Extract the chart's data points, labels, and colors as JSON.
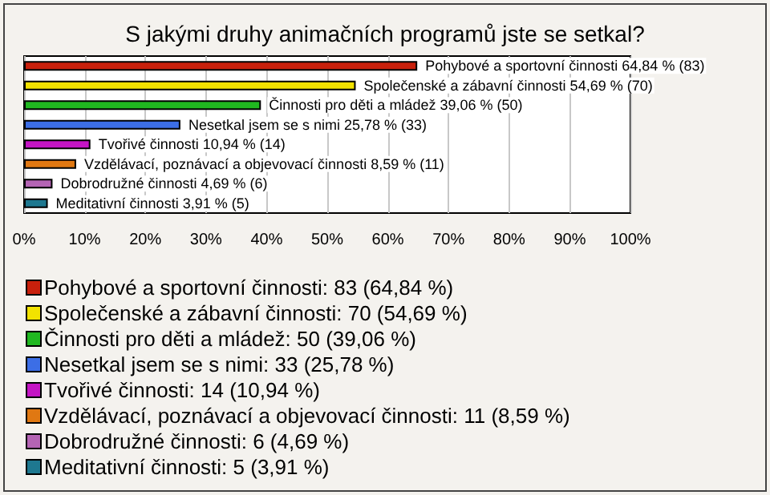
{
  "chart_data": {
    "type": "bar",
    "orientation": "horizontal",
    "stacked": true,
    "title": "S jakými druhy animačních programů jste se setkal?",
    "categories": [
      null,
      null,
      null,
      null,
      null,
      null,
      null,
      null
    ],
    "series": [
      {
        "name": "Pohybové a sportovní činnosti: 83 (64,84 %)",
        "color": "#c8200c",
        "values": [
          64.84,
          null,
          null,
          null,
          null,
          null,
          null,
          null
        ],
        "value_labels": [
          "Pohybové a sportovní činnosti 64,84 % (83)",
          null,
          null,
          null,
          null,
          null,
          null,
          null
        ]
      },
      {
        "name": "Společenské a zábavní činnosti: 70 (54,69 %)",
        "color": "#f2e200",
        "values": [
          null,
          54.69,
          null,
          null,
          null,
          null,
          null,
          null
        ],
        "value_labels": [
          null,
          "Společenské a zábavní činnosti 54,69 % (70)",
          null,
          null,
          null,
          null,
          null,
          null
        ]
      },
      {
        "name": "Činnosti pro děti a mládež: 50 (39,06 %)",
        "color": "#20b820",
        "values": [
          null,
          null,
          39.06,
          null,
          null,
          null,
          null,
          null
        ],
        "value_labels": [
          null,
          null,
          "Činnosti pro děti a mládež 39,06 % (50)",
          null,
          null,
          null,
          null,
          null
        ]
      },
      {
        "name": "Nesetkal jsem se s nimi: 33 (25,78 %)",
        "color": "#3c6ee6",
        "values": [
          null,
          null,
          null,
          25.78,
          null,
          null,
          null,
          null
        ],
        "value_labels": [
          null,
          null,
          null,
          "Nesetkal jsem se s nimi 25,78 % (33)",
          null,
          null,
          null,
          null
        ]
      },
      {
        "name": "Tvořivé činnosti: 14 (10,94 %)",
        "color": "#c414c4",
        "values": [
          null,
          null,
          null,
          null,
          10.94,
          null,
          null,
          null
        ],
        "value_labels": [
          null,
          null,
          null,
          null,
          "Tvořivé činnosti 10,94 % (14)",
          null,
          null,
          null
        ]
      },
      {
        "name": "Vzdělávací, poznávací a objevovací činnosti: 11 (8,59 %)",
        "color": "#e07812",
        "values": [
          null,
          null,
          null,
          null,
          null,
          8.59,
          null,
          null
        ],
        "value_labels": [
          null,
          null,
          null,
          null,
          null,
          "Vzdělávací, poznávací a objevovací činnosti 8,59 % (11)",
          null,
          null
        ]
      },
      {
        "name": "Dobrodružné činnosti: 6 (4,69 %)",
        "color": "#b464b4",
        "values": [
          null,
          null,
          null,
          null,
          null,
          null,
          4.69,
          null
        ],
        "value_labels": [
          null,
          null,
          null,
          null,
          null,
          null,
          "Dobrodružné činnosti 4,69 % (6)",
          null
        ]
      },
      {
        "name": "Meditativní činnosti: 5 (3,91 %)",
        "color": "#1e7890",
        "values": [
          null,
          null,
          null,
          null,
          null,
          null,
          null,
          3.91
        ],
        "value_labels": [
          null,
          null,
          null,
          null,
          null,
          null,
          null,
          "Meditativní činnosti 3,91 % (5)"
        ]
      }
    ],
    "xlim": [
      0,
      100
    ],
    "xticks": [
      {
        "value": 0,
        "label": "0%"
      },
      {
        "value": 10,
        "label": "10%"
      },
      {
        "value": 20,
        "label": "20%"
      },
      {
        "value": 30,
        "label": "30%"
      },
      {
        "value": 40,
        "label": "40%"
      },
      {
        "value": 50,
        "label": "50%"
      },
      {
        "value": 60,
        "label": "60%"
      },
      {
        "value": 70,
        "label": "70%"
      },
      {
        "value": 80,
        "label": "80%"
      },
      {
        "value": 90,
        "label": "90%"
      },
      {
        "value": 100,
        "label": "100%"
      }
    ],
    "grid": "x",
    "legend": "bottom"
  }
}
